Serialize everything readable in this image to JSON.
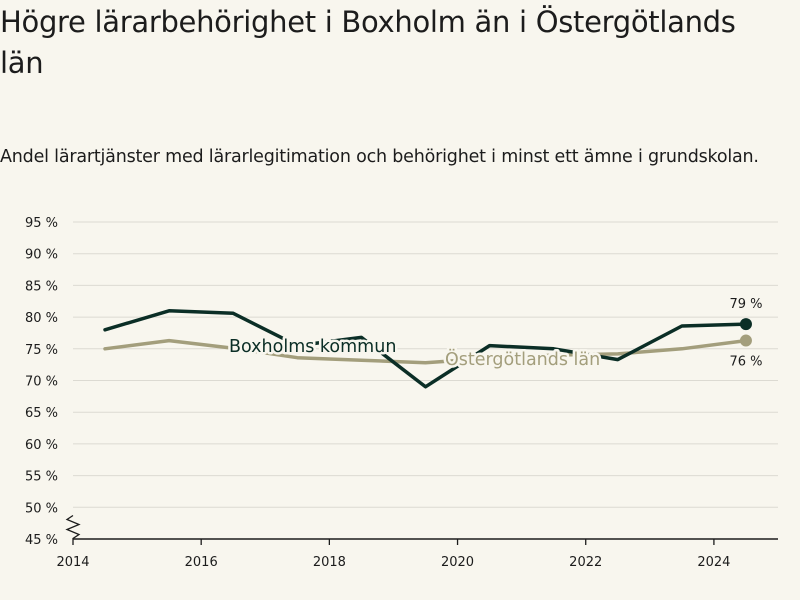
{
  "title": "Högre lärarbehörighet i Boxholm än i Östergötlands län",
  "subtitle": "Andel lärartjänster med lärarlegitimation och behörighet i minst ett ämne i grundskolan.",
  "colors": {
    "background": "#f8f6ee",
    "boxholm": "#0b2e26",
    "ostergotland": "#a39e7c",
    "grid": "#dcdad2",
    "axis": "#1c1c1c"
  },
  "chart_data": {
    "type": "line",
    "title": "Högre lärarbehörighet i Boxholm än i Östergötlands län",
    "subtitle": "Andel lärartjänster med lärarlegitimation och behörighet i minst ett ämne i grundskolan.",
    "x_ticks": [
      2014,
      2016,
      2018,
      2020,
      2022,
      2024
    ],
    "y_ticks": [
      "95 %",
      "90 %",
      "85 %",
      "80 %",
      "75 %",
      "70 %",
      "65 %",
      "60 %",
      "55 %",
      "50 %",
      "45 %"
    ],
    "xlim": [
      2014,
      2025
    ],
    "ylim": [
      45,
      95
    ],
    "grid": true,
    "axis_break": true,
    "series": [
      {
        "name": "Boxholms kommun",
        "x": [
          2014.5,
          2015.5,
          2016.5,
          2017.5,
          2018.5,
          2019.5,
          2020.5,
          2021.5,
          2022.5,
          2023.5,
          2024.5
        ],
        "values": [
          78,
          81,
          80.6,
          75.5,
          76.8,
          69,
          75.5,
          75,
          73.3,
          78.6,
          78.9
        ],
        "end_label": "79 %"
      },
      {
        "name": "Östergötlands län",
        "x": [
          2014.5,
          2015.5,
          2016.5,
          2017.5,
          2018.5,
          2019.5,
          2020.5,
          2021.5,
          2022.5,
          2023.5,
          2024.5
        ],
        "values": [
          75,
          76.3,
          75.1,
          73.6,
          73.2,
          72.8,
          73.5,
          74,
          74.2,
          75,
          76.3
        ],
        "end_label": "76 %"
      }
    ]
  }
}
